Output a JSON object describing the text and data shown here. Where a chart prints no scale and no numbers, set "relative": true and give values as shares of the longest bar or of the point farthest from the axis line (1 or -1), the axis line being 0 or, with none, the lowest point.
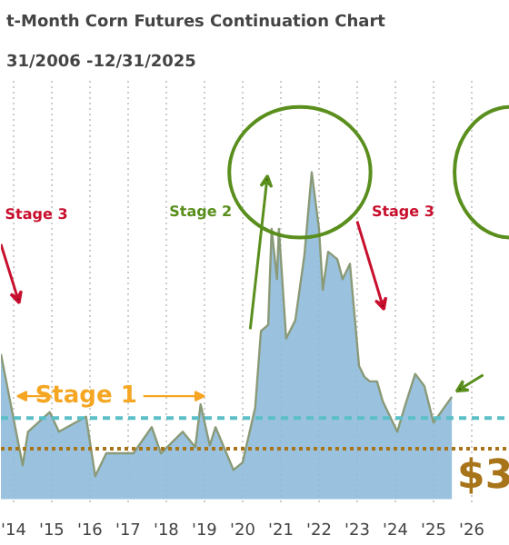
{
  "chart_data": {
    "type": "area",
    "title": "t-Month Corn Futures Continuation Chart",
    "subtitle": "31/2006 -12/31/2025",
    "relative": true,
    "x": [
      2013.67,
      2014.24,
      2014.38,
      2014.95,
      2015.19,
      2015.9,
      2016.14,
      2016.43,
      2017.14,
      2017.62,
      2017.86,
      2018.43,
      2018.76,
      2018.9,
      2019.14,
      2019.29,
      2019.76,
      2020.0,
      2020.33,
      2020.48,
      2020.67,
      2020.76,
      2020.9,
      2020.95,
      2021.14,
      2021.38,
      2021.62,
      2021.81,
      2022.0,
      2022.1,
      2022.24,
      2022.48,
      2022.62,
      2022.81,
      2023.05,
      2023.19,
      2023.33,
      2023.52,
      2023.67,
      2024.05,
      2024.24,
      2024.52,
      2024.76,
      2025.0,
      2025.48
    ],
    "series": [
      {
        "color": "#8fbbdc",
        "values": [
          0.444,
          0.103,
          0.206,
          0.266,
          0.206,
          0.252,
          0.07,
          0.14,
          0.14,
          0.22,
          0.14,
          0.206,
          0.159,
          0.29,
          0.164,
          0.22,
          0.089,
          0.112,
          0.28,
          0.514,
          0.533,
          0.827,
          0.673,
          0.827,
          0.491,
          0.547,
          0.748,
          1,
          0.827,
          0.64,
          0.757,
          0.734,
          0.673,
          0.72,
          0.407,
          0.374,
          0.36,
          0.36,
          0.299,
          0.206,
          0.28,
          0.383,
          0.346,
          0.234,
          0.313
        ]
      }
    ],
    "xlim": [
      2013.67,
      2027.0
    ],
    "xticks": [
      {
        "value": 2014,
        "label": "'14"
      },
      {
        "value": 2015,
        "label": "'15"
      },
      {
        "value": 2016,
        "label": "'16"
      },
      {
        "value": 2017,
        "label": "'17"
      },
      {
        "value": 2018,
        "label": "'18"
      },
      {
        "value": 2019,
        "label": "'19"
      },
      {
        "value": 2020,
        "label": "'20"
      },
      {
        "value": 2021,
        "label": "'21"
      },
      {
        "value": 2022,
        "label": "'22"
      },
      {
        "value": 2023,
        "label": "'23"
      },
      {
        "value": 2024,
        "label": "'24"
      },
      {
        "value": 2025,
        "label": "'25"
      },
      {
        "value": 2026,
        "label": "'26"
      }
    ],
    "ref_lines": [
      {
        "axis": "y",
        "value": 0.248,
        "color": "#5bbfc7",
        "line_style": "dashed"
      },
      {
        "axis": "y",
        "value": 0.154,
        "color": "#a8741a",
        "line_style": "dotted"
      }
    ],
    "annotations": [
      "Stage 3",
      "Stage 2",
      "Stage 3",
      "Stage 1",
      "$3"
    ],
    "grid": "x"
  }
}
